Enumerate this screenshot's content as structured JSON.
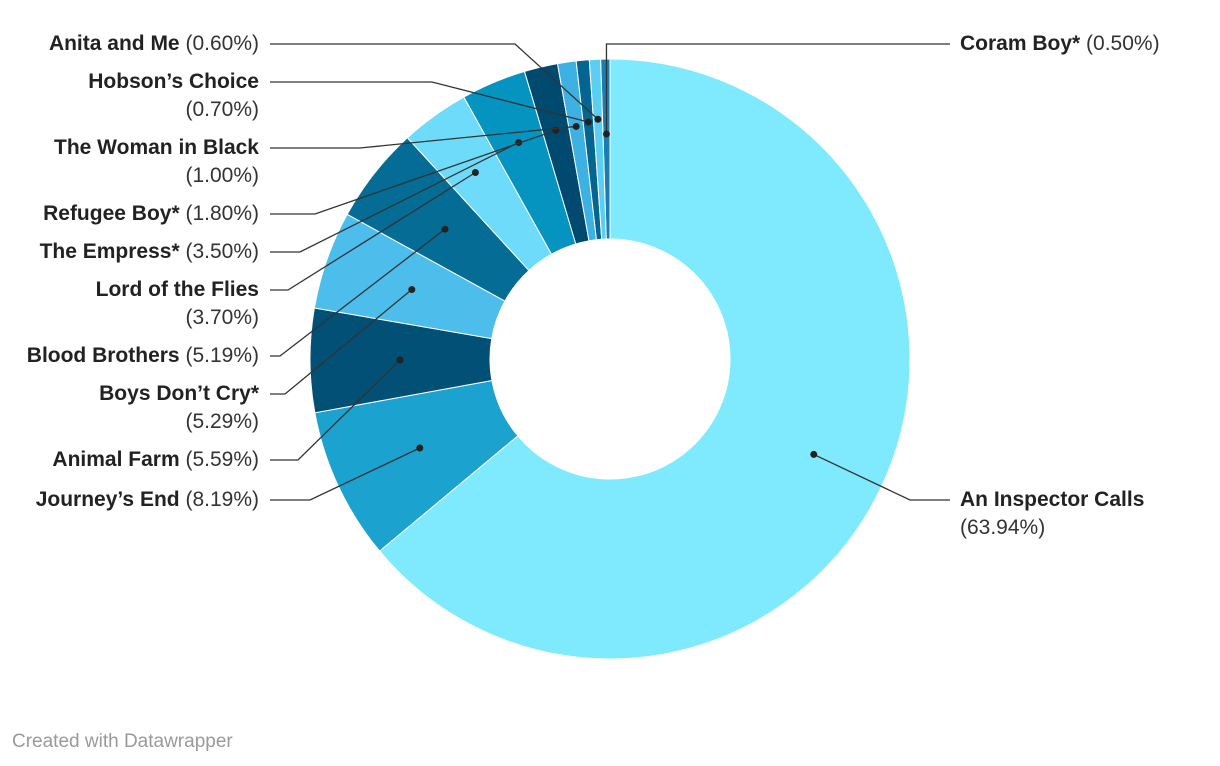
{
  "chart_data": {
    "type": "pie",
    "donut": true,
    "title": "",
    "slices": [
      {
        "label": "Coram Boy*",
        "value": 0.5,
        "display": "(0.50%)",
        "color": "#1b7eb0"
      },
      {
        "label": "An Inspector Calls",
        "value": 63.94,
        "display": "(63.94%)",
        "color": "#7feafd"
      },
      {
        "label": "Journey’s End",
        "value": 8.19,
        "display": "(8.19%)",
        "color": "#1ba2cf"
      },
      {
        "label": "Animal Farm",
        "value": 5.59,
        "display": "(5.59%)",
        "color": "#025075"
      },
      {
        "label": "Boys Don’t Cry*",
        "value": 5.29,
        "display": "(5.29%)",
        "color": "#4dbeeb"
      },
      {
        "label": "Blood Brothers",
        "value": 5.19,
        "display": "(5.19%)",
        "color": "#046c95"
      },
      {
        "label": "Lord of the Flies",
        "value": 3.7,
        "display": "(3.70%)",
        "color": "#6ddbf9"
      },
      {
        "label": "The Empress*",
        "value": 3.5,
        "display": "(3.50%)",
        "color": "#0593c0"
      },
      {
        "label": "Refugee Boy*",
        "value": 1.8,
        "display": "(1.80%)",
        "color": "#014a6f"
      },
      {
        "label": "The Woman in Black",
        "value": 1.0,
        "display": "(1.00%)",
        "color": "#3db1e2"
      },
      {
        "label": "Hobson’s Choice",
        "value": 0.7,
        "display": "(0.70%)",
        "color": "#036590"
      },
      {
        "label": "Anita and Me",
        "value": 0.6,
        "display": "(0.60%)",
        "color": "#5bcff2"
      }
    ]
  },
  "footer": "Created with Datawrapper"
}
